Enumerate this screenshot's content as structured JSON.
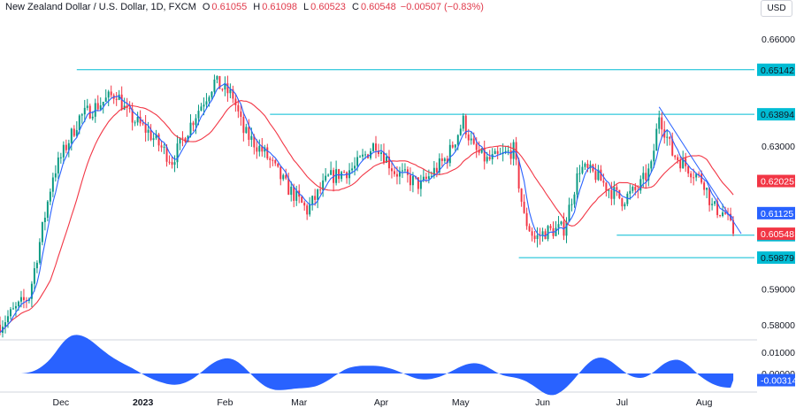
{
  "header": {
    "symbol": "New Zealand Dollar / U.S. Dollar, 1D, FXCM",
    "open_label": "O",
    "open": "0.61055",
    "high_label": "H",
    "high": "0.61098",
    "low_label": "L",
    "low": "0.60523",
    "close_label": "C",
    "close": "0.60548",
    "change": "−0.00507 (−0.83%)",
    "currency": "USD"
  },
  "chart_data": {
    "type": "candlestick",
    "ylim": [
      0.576,
      0.666
    ],
    "y_ticks": [
      {
        "value": 0.66,
        "label": "0.66000"
      },
      {
        "value": 0.63,
        "label": "0.63000"
      },
      {
        "value": 0.59,
        "label": "0.59000"
      },
      {
        "value": 0.58,
        "label": "0.58000"
      }
    ],
    "x_tick_labels": [
      {
        "label": "Dec",
        "day": 15
      },
      {
        "label": "2023",
        "day": 46,
        "bold": true
      },
      {
        "label": "Feb",
        "day": 77
      },
      {
        "label": "Mar",
        "day": 105
      },
      {
        "label": "Apr",
        "day": 136
      },
      {
        "label": "May",
        "day": 166
      },
      {
        "label": "Jun",
        "day": 197
      },
      {
        "label": "Jul",
        "day": 227
      },
      {
        "label": "Aug",
        "day": 258
      }
    ],
    "x_domain": [
      -8,
      277
    ],
    "anchors": [
      [
        -8,
        0.58
      ],
      [
        3,
        0.588
      ],
      [
        12,
        0.622
      ],
      [
        22,
        0.638
      ],
      [
        36,
        0.645
      ],
      [
        40,
        0.639
      ],
      [
        48,
        0.634
      ],
      [
        57,
        0.626
      ],
      [
        66,
        0.639
      ],
      [
        73,
        0.648
      ],
      [
        80,
        0.644
      ],
      [
        84,
        0.634
      ],
      [
        92,
        0.628
      ],
      [
        100,
        0.619
      ],
      [
        108,
        0.612
      ],
      [
        116,
        0.621
      ],
      [
        126,
        0.624
      ],
      [
        134,
        0.631
      ],
      [
        141,
        0.623
      ],
      [
        151,
        0.619
      ],
      [
        161,
        0.627
      ],
      [
        167,
        0.637
      ],
      [
        171,
        0.629
      ],
      [
        176,
        0.626
      ],
      [
        181,
        0.627
      ],
      [
        186,
        0.629
      ],
      [
        190,
        0.61
      ],
      [
        194,
        0.604
      ],
      [
        198,
        0.606
      ],
      [
        205,
        0.607
      ],
      [
        211,
        0.624
      ],
      [
        217,
        0.622
      ],
      [
        222,
        0.618
      ],
      [
        227,
        0.615
      ],
      [
        233,
        0.618
      ],
      [
        238,
        0.624
      ],
      [
        241,
        0.639
      ],
      [
        246,
        0.628
      ],
      [
        252,
        0.624
      ],
      [
        258,
        0.62
      ],
      [
        261,
        0.613
      ],
      [
        266,
        0.611
      ],
      [
        269,
        0.6055
      ]
    ],
    "last_bar_day": 269,
    "sma_fast_period": 5,
    "sma_slow_period": 20,
    "levels": [
      {
        "value": 0.65142,
        "label": "0.65142",
        "from_day": 21
      },
      {
        "value": 0.63894,
        "label": "0.63894",
        "from_day": 94
      },
      {
        "value": 0.60507,
        "label": "0.60507",
        "from_day": 225
      },
      {
        "value": 0.59879,
        "label": "0.59879",
        "from_day": 188
      }
    ],
    "trendline": {
      "from": [
        241,
        0.641
      ],
      "to": [
        272,
        0.6055
      ]
    },
    "price_labels": [
      {
        "value": 0.62025,
        "label": "0.62025",
        "color": "#f23645"
      },
      {
        "value": 0.61125,
        "label": "0.61125",
        "color": "#2962ff"
      },
      {
        "value": 0.60548,
        "label": "0.60548",
        "color": "#f23645"
      }
    ],
    "oscillator": {
      "ylim": [
        -0.0075,
        0.015
      ],
      "y_ticks": [
        {
          "value": 0.01,
          "label": "0.01000"
        },
        {
          "value": 0.0,
          "label": "0.00000"
        }
      ],
      "last_label": "-0.00314",
      "color": "#2962ff"
    },
    "colors": {
      "up": "#089981",
      "down": "#f23645",
      "sma_fast": "#2962ff",
      "sma_slow": "#f23645",
      "level": "#00bcd4",
      "trend": "#2962ff"
    }
  }
}
